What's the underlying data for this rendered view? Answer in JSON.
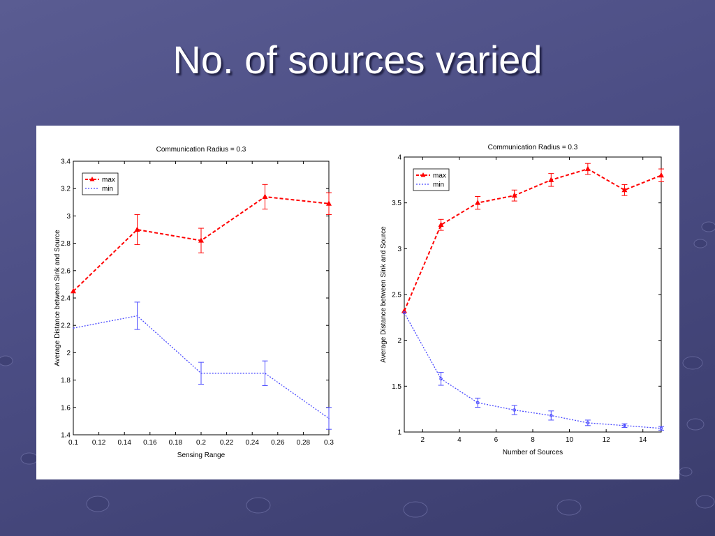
{
  "slide": {
    "title": "No. of sources varied"
  },
  "colors": {
    "max": "#ff0000",
    "min": "#4a4aff",
    "background": "#4b4d84"
  },
  "chart_data": [
    {
      "type": "line",
      "title": "Communication Radius  = 0.3",
      "xlabel": "Sensing Range",
      "ylabel": "Average Distance between Sink and Source",
      "xlim": [
        0.1,
        0.3
      ],
      "ylim": [
        1.4,
        3.4
      ],
      "xticks": [
        "0.1",
        "0.12",
        "0.14",
        "0.16",
        "0.18",
        "0.2",
        "0.22",
        "0.24",
        "0.26",
        "0.28",
        "0.3"
      ],
      "yticks": [
        "1.4",
        "1.6",
        "1.8",
        "2",
        "2.2",
        "2.4",
        "2.6",
        "2.8",
        "3",
        "3.2",
        "3.4"
      ],
      "grid": false,
      "legend_position": "top-left",
      "series": [
        {
          "name": "max",
          "marker": "triangle",
          "line": "dashed",
          "x": [
            0.1,
            0.15,
            0.2,
            0.25,
            0.3
          ],
          "y": [
            2.45,
            2.9,
            2.82,
            3.14,
            3.09
          ],
          "err": [
            0,
            0.11,
            0.09,
            0.09,
            0.08
          ]
        },
        {
          "name": "min",
          "marker": "none",
          "line": "dotted",
          "x": [
            0.1,
            0.15,
            0.2,
            0.25,
            0.3
          ],
          "y": [
            2.18,
            2.27,
            1.85,
            1.85,
            1.52
          ],
          "err": [
            0,
            0.1,
            0.08,
            0.09,
            0.08
          ]
        }
      ]
    },
    {
      "type": "line",
      "title": "Communication Radius  = 0.3",
      "xlabel": "Number of Sources",
      "ylabel": "Average Distance between Sink and Source",
      "xlim": [
        1,
        15
      ],
      "ylim": [
        1,
        4
      ],
      "xticks": [
        "2",
        "4",
        "6",
        "8",
        "10",
        "12",
        "14"
      ],
      "yticks": [
        "1",
        "1.5",
        "2",
        "2.5",
        "3",
        "3.5",
        "4"
      ],
      "grid": false,
      "legend_position": "top-left",
      "series": [
        {
          "name": "max",
          "marker": "triangle",
          "line": "dashed",
          "x": [
            1,
            3,
            5,
            7,
            9,
            11,
            13,
            15
          ],
          "y": [
            2.32,
            3.26,
            3.5,
            3.58,
            3.75,
            3.87,
            3.64,
            3.8
          ],
          "err": [
            0,
            0.06,
            0.07,
            0.06,
            0.07,
            0.06,
            0.06,
            0.07
          ]
        },
        {
          "name": "min",
          "marker": "circle",
          "line": "dotted",
          "x": [
            1,
            3,
            5,
            7,
            9,
            11,
            13,
            15
          ],
          "y": [
            2.3,
            1.58,
            1.32,
            1.24,
            1.18,
            1.1,
            1.07,
            1.04
          ],
          "err": [
            0,
            0.07,
            0.05,
            0.05,
            0.05,
            0.03,
            0.02,
            0.02
          ]
        }
      ]
    }
  ]
}
